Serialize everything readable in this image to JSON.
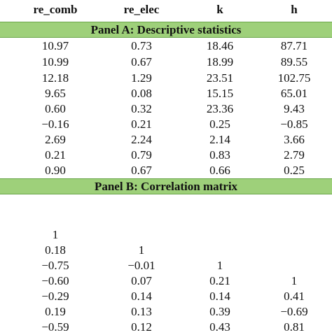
{
  "header": [
    "re_comb",
    "re_elec",
    "k",
    "h"
  ],
  "panel_a": {
    "title": "Panel A: Descriptive statistics",
    "rows": [
      [
        "10.97",
        "0.73",
        "18.46",
        "87.71"
      ],
      [
        "10.99",
        "0.67",
        "18.99",
        "89.55"
      ],
      [
        "12.18",
        "1.29",
        "23.51",
        "102.75"
      ],
      [
        "9.65",
        "0.08",
        "15.15",
        "65.01"
      ],
      [
        "0.60",
        "0.32",
        "23.36",
        "9.43"
      ],
      [
        "−0.16",
        "0.21",
        "0.25",
        "−0.85"
      ],
      [
        "2.69",
        "2.24",
        "2.14",
        "3.66"
      ],
      [
        "0.21",
        "0.79",
        "0.83",
        "2.79"
      ],
      [
        "0.90",
        "0.67",
        "0.66",
        "0.25"
      ]
    ]
  },
  "panel_b": {
    "title": "Panel B: Correlation matrix",
    "rows": [
      [
        "1",
        "",
        "",
        ""
      ],
      [
        "0.18",
        "1",
        "",
        ""
      ],
      [
        "−0.75",
        "−0.01",
        "1",
        ""
      ],
      [
        "−0.60",
        "0.07",
        "0.21",
        "1"
      ],
      [
        "−0.29",
        "0.14",
        "0.14",
        "0.41"
      ],
      [
        "0.19",
        "0.13",
        "0.39",
        "−0.69"
      ],
      [
        "−0.59",
        "0.12",
        "0.43",
        "0.81"
      ]
    ]
  }
}
